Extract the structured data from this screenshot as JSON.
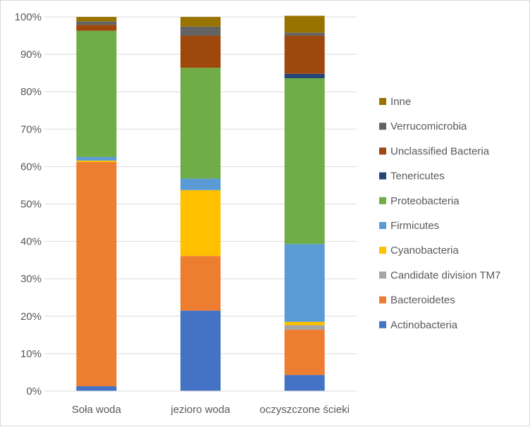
{
  "chart_data": {
    "type": "bar",
    "stacked": true,
    "percent": true,
    "categories": [
      "Soła woda",
      "jezioro woda",
      "oczyszczone ścieki"
    ],
    "ylim": [
      0,
      100
    ],
    "y_ticks": [
      "0%",
      "10%",
      "20%",
      "30%",
      "40%",
      "50%",
      "60%",
      "70%",
      "80%",
      "90%",
      "100%"
    ],
    "grid": true,
    "legend_position": "right",
    "series": [
      {
        "name": "Actinobacteria",
        "color": "#4472C4",
        "values": [
          1.3,
          21.5,
          4.3
        ]
      },
      {
        "name": "Bacteroidetes",
        "color": "#ED7D31",
        "values": [
          59.9,
          14.6,
          12.1
        ]
      },
      {
        "name": "Candidate division TM7",
        "color": "#A5A5A5",
        "values": [
          0.0,
          0.0,
          1.2
        ]
      },
      {
        "name": "Cyanobacteria",
        "color": "#FFC000",
        "values": [
          0.4,
          17.6,
          0.9
        ]
      },
      {
        "name": "Firmicutes",
        "color": "#5B9BD5",
        "values": [
          1.0,
          3.1,
          20.8
        ]
      },
      {
        "name": "Proteobacteria",
        "color": "#70AD47",
        "values": [
          33.7,
          29.6,
          44.3
        ]
      },
      {
        "name": "Tenericutes",
        "color": "#264478",
        "values": [
          0.0,
          0.0,
          1.2
        ]
      },
      {
        "name": "Unclassified Bacteria",
        "color": "#9E480E",
        "values": [
          1.6,
          8.6,
          10.2
        ]
      },
      {
        "name": "Verrucomicrobia",
        "color": "#636363",
        "values": [
          0.9,
          2.4,
          0.8
        ]
      },
      {
        "name": "Inne",
        "color": "#997300",
        "values": [
          1.2,
          2.6,
          4.5
        ]
      }
    ]
  }
}
